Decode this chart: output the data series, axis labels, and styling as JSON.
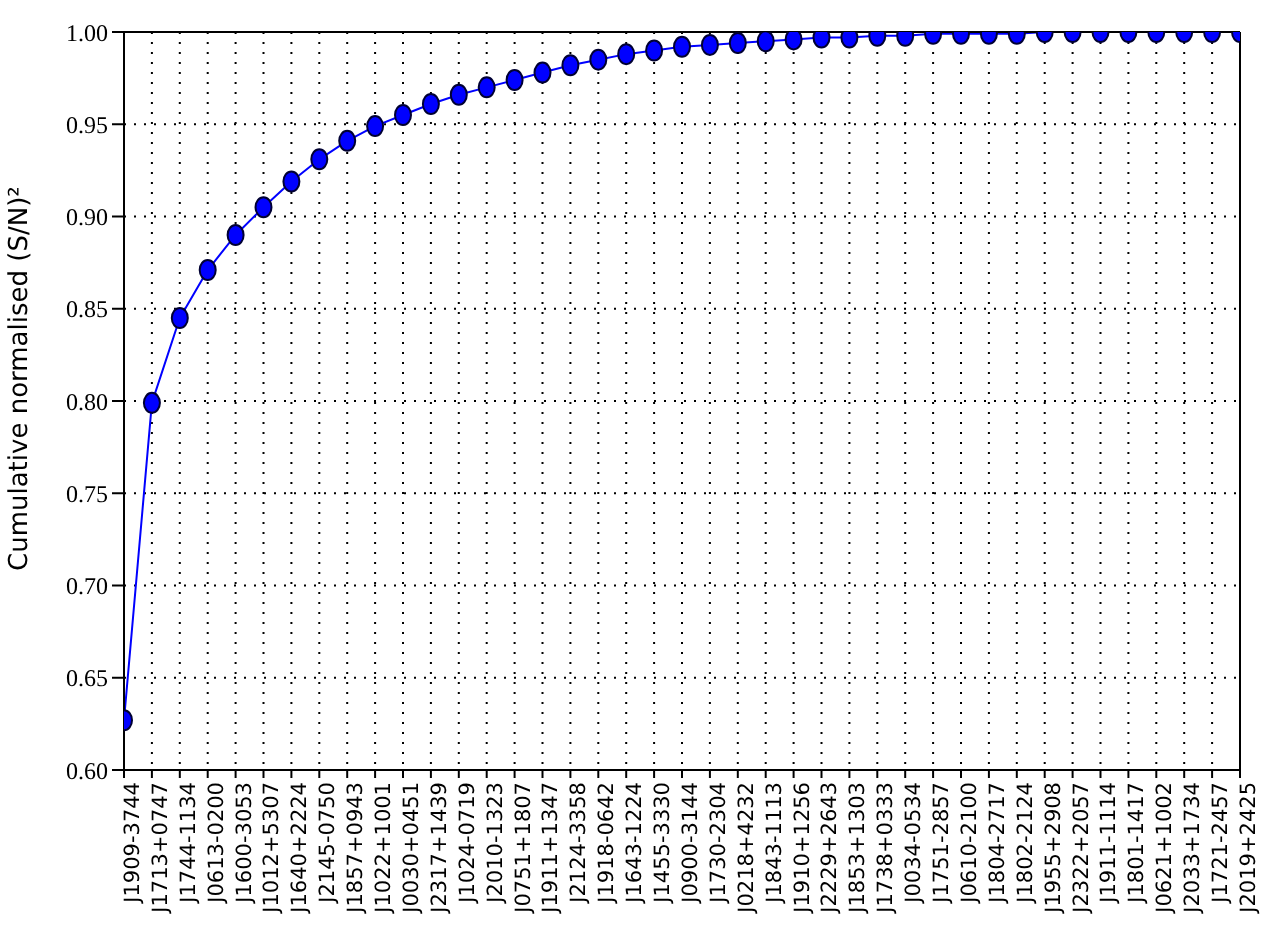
{
  "chart_data": {
    "type": "line",
    "ylabel": "Cumulative normalised (S/N)²",
    "categories": [
      "J1909-3744",
      "J1713+0747",
      "J1744-1134",
      "J0613-0200",
      "J1600-3053",
      "J1012+5307",
      "J1640+2224",
      "J2145-0750",
      "J1857+0943",
      "J1022+1001",
      "J0030+0451",
      "J2317+1439",
      "J1024-0719",
      "J2010-1323",
      "J0751+1807",
      "J1911+1347",
      "J2124-3358",
      "J1918-0642",
      "J1643-1224",
      "J1455-3330",
      "J0900-3144",
      "J1730-2304",
      "J0218+4232",
      "J1843-1113",
      "J1910+1256",
      "J2229+2643",
      "J1853+1303",
      "J1738+0333",
      "J0034-0534",
      "J1751-2857",
      "J0610-2100",
      "J1804-2717",
      "J1802-2124",
      "J1955+2908",
      "J2322+2057",
      "J1911-1114",
      "J1801-1417",
      "J0621+1002",
      "J2033+1734",
      "J1721-2457",
      "J2019+2425"
    ],
    "series": [
      {
        "color": "#0000ff",
        "values": [
          0.627,
          0.799,
          0.845,
          0.871,
          0.89,
          0.905,
          0.919,
          0.931,
          0.941,
          0.949,
          0.955,
          0.961,
          0.966,
          0.97,
          0.974,
          0.978,
          0.982,
          0.985,
          0.988,
          0.99,
          0.992,
          0.993,
          0.994,
          0.995,
          0.996,
          0.997,
          0.997,
          0.998,
          0.998,
          0.999,
          0.999,
          0.999,
          0.999,
          1.0,
          1.0,
          1.0,
          1.0,
          1.0,
          1.0,
          1.0,
          1.0
        ]
      }
    ],
    "ylim": [
      0.6,
      1.0
    ],
    "yticks": [
      {
        "value": 0.6,
        "label": "0.60"
      },
      {
        "value": 0.65,
        "label": "0.65"
      },
      {
        "value": 0.7,
        "label": "0.70"
      },
      {
        "value": 0.75,
        "label": "0.75"
      },
      {
        "value": 0.8,
        "label": "0.80"
      },
      {
        "value": 0.85,
        "label": "0.85"
      },
      {
        "value": 0.9,
        "label": "0.90"
      },
      {
        "value": 0.95,
        "label": "0.95"
      },
      {
        "value": 1.0,
        "label": "1.00"
      }
    ],
    "grid": true,
    "marker": "circle",
    "line_style": "solid",
    "legend": false
  }
}
